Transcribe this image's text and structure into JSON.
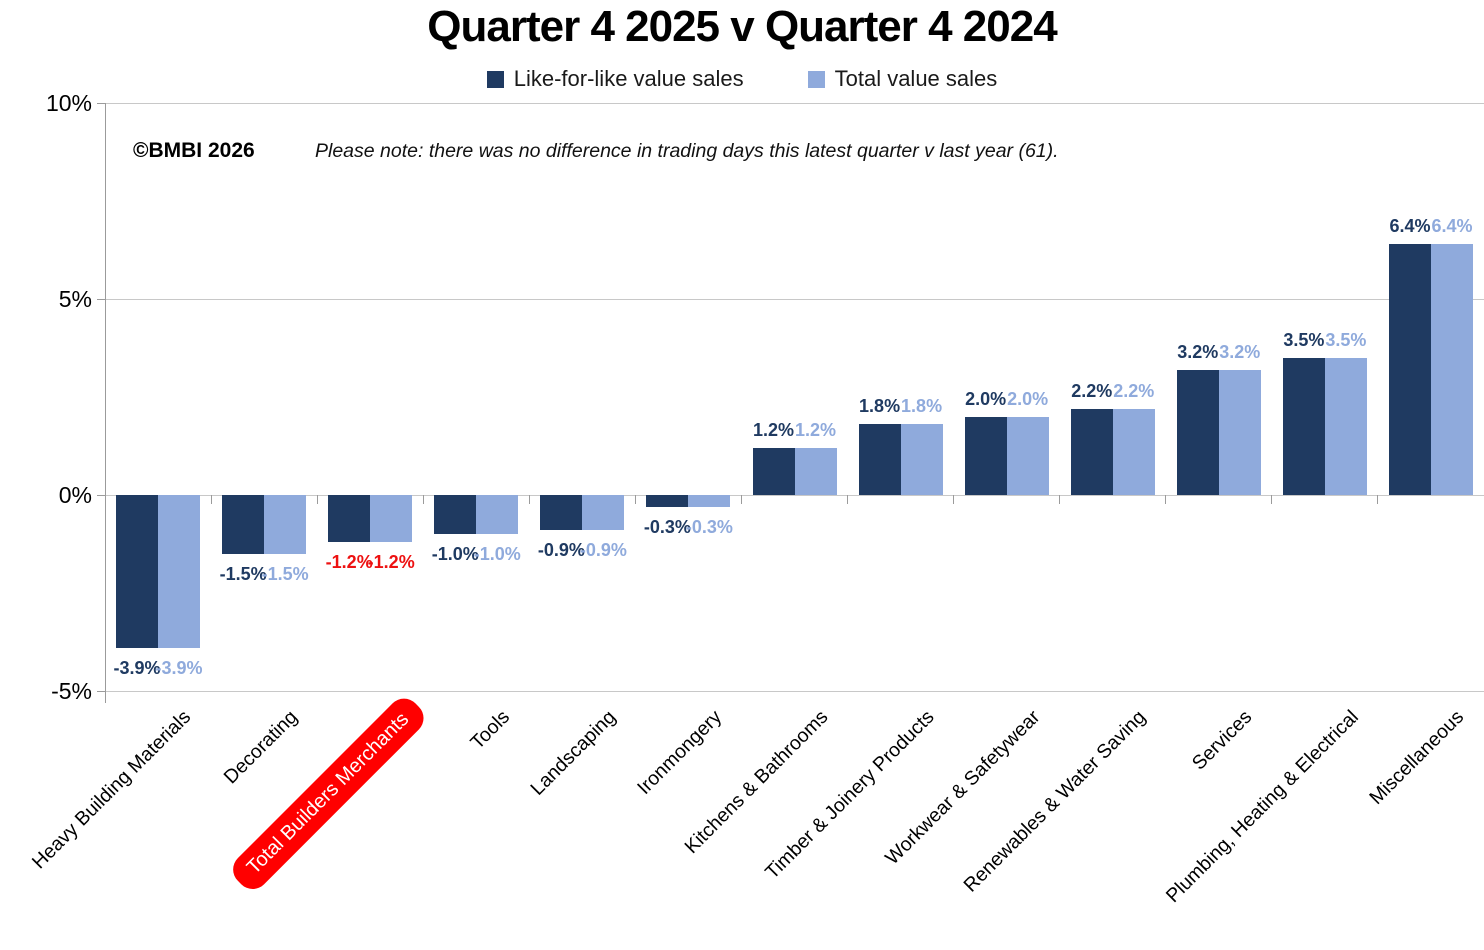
{
  "title": "Quarter 4 2025 v Quarter 4 2024",
  "copyright": "©BMBI 2026",
  "note": "Please note: there was no difference in trading days this latest quarter v last year (61).",
  "legend": [
    {
      "label": "Like-for-like value sales",
      "color": "#1F3A61"
    },
    {
      "label": "Total value sales",
      "color": "#8FAADC"
    }
  ],
  "chart_data": {
    "type": "bar",
    "title": "Quarter 4 2025 v Quarter 4 2024",
    "categories": [
      "Heavy Building Materials",
      "Decorating",
      "Total Builders Merchants",
      "Tools",
      "Landscaping",
      "Ironmongery",
      "Kitchens & Bathrooms",
      "Timber & Joinery Products",
      "Workwear & Safetywear",
      "Renewables & Water Saving",
      "Services",
      "Plumbing, Heating & Electrical",
      "Miscellaneous"
    ],
    "series": [
      {
        "name": "Like-for-like value sales",
        "color": "#1F3A61",
        "values": [
          -3.9,
          -1.5,
          -1.2,
          -1.0,
          -0.9,
          -0.3,
          1.2,
          1.8,
          2.0,
          2.2,
          3.2,
          3.5,
          6.4
        ]
      },
      {
        "name": "Total value sales",
        "color": "#8FAADC",
        "values": [
          -3.9,
          -1.5,
          -1.2,
          -1.0,
          -0.9,
          -0.3,
          1.2,
          1.8,
          2.0,
          2.2,
          3.2,
          3.5,
          6.4
        ]
      }
    ],
    "value_label_format": "0.0%",
    "yticks": [
      {
        "label": "10%",
        "value": 10
      },
      {
        "label": "5%",
        "value": 5
      },
      {
        "label": "0%",
        "value": 0
      },
      {
        "label": "-5%",
        "value": -5
      }
    ],
    "ylim": [
      -5,
      10
    ],
    "grid": "horizontal",
    "legend_position": "top",
    "highlight": {
      "category": "Total Builders Merchants",
      "index": 2,
      "box_color": "#FF0000",
      "box_text_color": "#FFFFFF",
      "value_label_color": "#ED1111"
    }
  }
}
